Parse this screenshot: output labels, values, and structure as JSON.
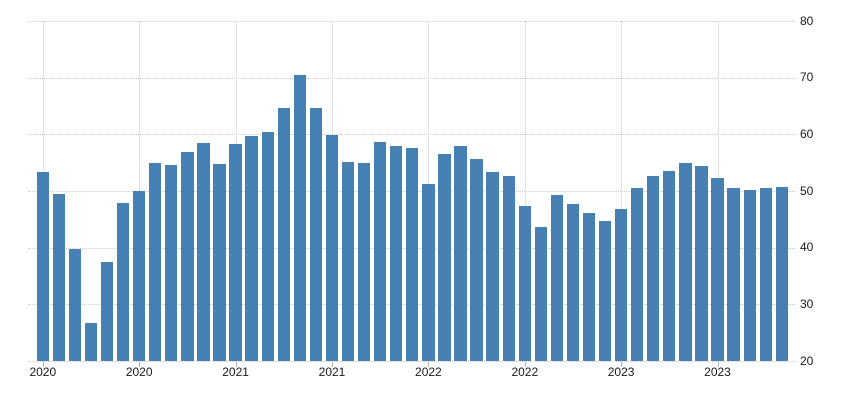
{
  "chart_data": {
    "type": "bar",
    "title": "",
    "xlabel": "",
    "ylabel": "",
    "x": [
      "Jan 2020",
      "Feb 2020",
      "Mar 2020",
      "Apr 2020",
      "May 2020",
      "Jun 2020",
      "Jul 2020",
      "Aug 2020",
      "Sep 2020",
      "Oct 2020",
      "Nov 2020",
      "Dec 2020",
      "Jan 2021",
      "Feb 2021",
      "Mar 2021",
      "Apr 2021",
      "May 2021",
      "Jun 2021",
      "Jul 2021",
      "Aug 2021",
      "Sep 2021",
      "Oct 2021",
      "Nov 2021",
      "Dec 2021",
      "Jan 2022",
      "Feb 2022",
      "Mar 2022",
      "Apr 2022",
      "May 2022",
      "Jun 2022",
      "Jul 2022",
      "Aug 2022",
      "Sep 2022",
      "Oct 2022",
      "Nov 2022",
      "Dec 2022",
      "Jan 2023",
      "Feb 2023",
      "Mar 2023",
      "Apr 2023",
      "May 2023",
      "Jun 2023",
      "Jul 2023",
      "Aug 2023",
      "Sep 2023",
      "Oct 2023",
      "Nov 2023"
    ],
    "values": [
      53.4,
      49.4,
      39.8,
      26.7,
      37.5,
      47.9,
      50.0,
      55.0,
      54.6,
      56.9,
      58.4,
      54.8,
      58.3,
      59.8,
      60.4,
      64.7,
      70.4,
      64.6,
      59.9,
      55.1,
      54.9,
      58.7,
      58.0,
      57.6,
      51.2,
      56.5,
      58.0,
      55.6,
      53.4,
      52.7,
      47.3,
      43.7,
      49.3,
      47.8,
      46.2,
      44.7,
      46.8,
      50.6,
      52.6,
      53.6,
      54.9,
      54.4,
      52.3,
      50.5,
      50.1,
      50.6,
      50.8
    ],
    "x_axis_tick_labels": [
      "2020",
      "2020",
      "2021",
      "2021",
      "2022",
      "2022",
      "2023",
      "2023"
    ],
    "x_axis_tick_positions": [
      "Jan 2020",
      "Jul 2020",
      "Jan 2021",
      "Jul 2021",
      "Jan 2022",
      "Jul 2022",
      "Jan 2023",
      "Jul 2023"
    ],
    "y_ticks": [
      20,
      30,
      40,
      50,
      60,
      70,
      80
    ],
    "ylim": [
      20,
      80
    ],
    "grid": "dotted horizontal lines at each y tick and dotted vertical lines at each x tick; baseline dotted",
    "legend_position": "none",
    "colors": {
      "bar": "#4781b3",
      "gridline": "#cccccc",
      "tick_mark": "#b3b3b3",
      "tick_text": "#1a1a1a",
      "background": "#ffffff"
    }
  }
}
